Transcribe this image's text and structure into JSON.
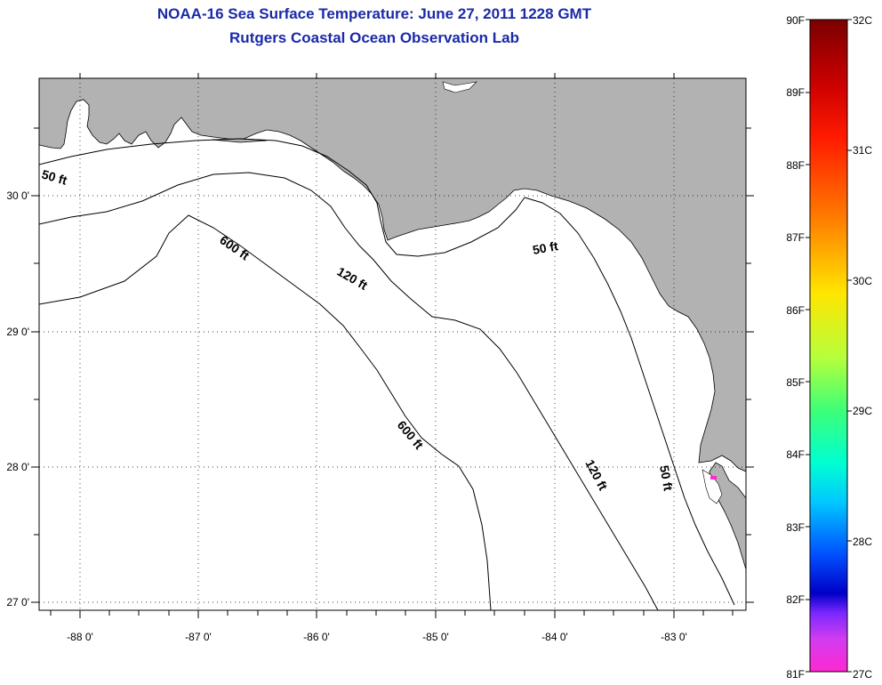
{
  "title": "NOAA-16 Sea Surface Temperature:  June 27, 2011 1228 GMT",
  "subtitle": "Rutgers Coastal Ocean Observation Lab",
  "map": {
    "lon_labels": [
      "-88 0'",
      "-87 0'",
      "-86 0'",
      "-85 0'",
      "-84 0'",
      "-83 0'"
    ],
    "lat_labels": [
      "30 0'",
      "29 0'",
      "28 0'",
      "27 0'"
    ],
    "contours": [
      "50 ft",
      "120 ft",
      "600 ft",
      "50 ft",
      "600 ft",
      "120 ft",
      "50 ft"
    ],
    "land_color": "#b2b2b2",
    "water_color": "#ffffff"
  },
  "colorbar": {
    "fahrenheit": [
      "90F",
      "89F",
      "88F",
      "87F",
      "86F",
      "85F",
      "84F",
      "83F",
      "82F",
      "81F"
    ],
    "celsius": [
      "32C",
      "31C",
      "30C",
      "29C",
      "28C",
      "27C"
    ]
  }
}
